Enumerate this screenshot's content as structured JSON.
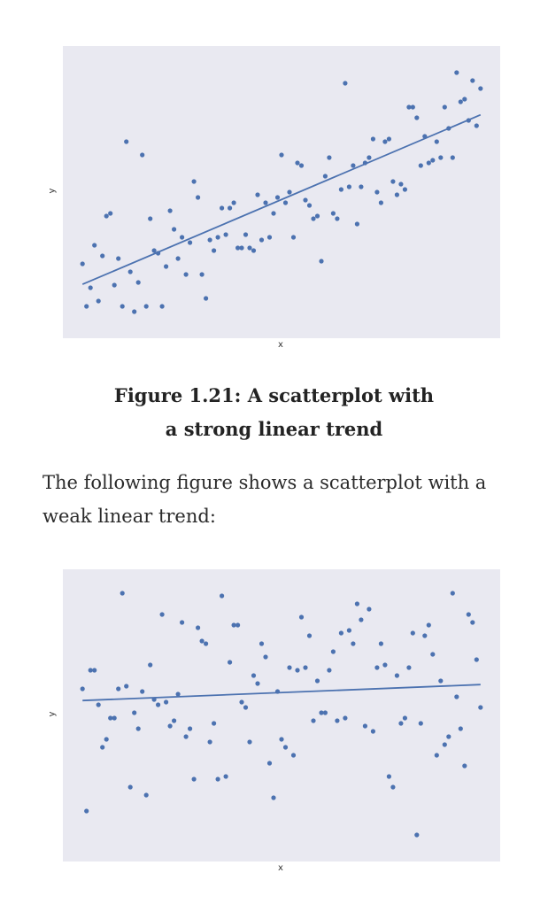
{
  "caption": {
    "line1": "Figure 1.21: A scatterplot with",
    "line2": "a strong linear trend"
  },
  "paragraph": {
    "line1": "The following figure shows a scatterplot with a",
    "line2": "weak linear trend:"
  },
  "colors": {
    "axes_background": "#e9e9f1",
    "point": "#4c72b0",
    "line": "#4c72b0"
  },
  "chart_data": [
    {
      "type": "scatter",
      "title": "",
      "xlabel": "x",
      "ylabel": "y",
      "xlim": [
        0,
        100
      ],
      "ylim": [
        0,
        100
      ],
      "grid": false,
      "trendline": {
        "x": [
          5,
          105
        ],
        "y": [
          15.3,
          79.1
        ]
      },
      "x": [
        5,
        6,
        7,
        8,
        9,
        10,
        11,
        12,
        13,
        14,
        15,
        16,
        17,
        18,
        19,
        20,
        21,
        22,
        23,
        24,
        25,
        26,
        27,
        28,
        29,
        30,
        31,
        32,
        33,
        34,
        35,
        36,
        37,
        38,
        39,
        40,
        41,
        42,
        43,
        44,
        45,
        46,
        47,
        48,
        49,
        50,
        51,
        52,
        53,
        54,
        55,
        56,
        57,
        58,
        59,
        60,
        61,
        62,
        63,
        64,
        65,
        66,
        67,
        68,
        69,
        70,
        71,
        72,
        73,
        74,
        75,
        76,
        77,
        78,
        79,
        80,
        81,
        82,
        83,
        84,
        85,
        86,
        87,
        88,
        89,
        90,
        91,
        92,
        93,
        94,
        95,
        96,
        97,
        98,
        99,
        100,
        101,
        102,
        103,
        104,
        105
      ],
      "y": [
        23,
        7,
        14,
        30,
        9,
        26,
        41,
        42,
        15,
        25,
        7,
        69,
        20,
        5,
        16,
        64,
        7,
        40,
        28,
        27,
        7,
        22,
        43,
        36,
        25,
        33,
        19,
        31,
        54,
        48,
        19,
        10,
        32,
        28,
        33,
        44,
        34,
        44,
        46,
        29,
        29,
        34,
        29,
        28,
        49,
        32,
        46,
        33,
        42,
        48,
        64,
        46,
        50,
        33,
        61,
        60,
        47,
        45,
        40,
        41,
        24,
        56,
        63,
        42,
        40,
        51,
        91,
        52,
        60,
        38,
        52,
        61,
        63,
        70,
        50,
        46,
        69,
        70,
        54,
        49,
        53,
        51,
        82,
        82,
        78,
        60,
        71,
        61,
        62,
        69,
        63,
        82,
        74,
        63,
        95,
        84,
        85,
        77,
        92,
        75,
        89
      ]
    },
    {
      "type": "scatter",
      "title": "",
      "xlabel": "x",
      "ylabel": "y",
      "xlim": [
        0,
        100
      ],
      "ylim": [
        0,
        100
      ],
      "grid": false,
      "trendline": {
        "x": [
          5,
          105
        ],
        "y": [
          55.6,
          61.6
        ]
      },
      "x": [
        5,
        6,
        7,
        8,
        9,
        10,
        11,
        12,
        13,
        14,
        15,
        16,
        17,
        18,
        19,
        20,
        21,
        22,
        23,
        24,
        25,
        26,
        27,
        28,
        29,
        30,
        31,
        32,
        33,
        34,
        35,
        36,
        37,
        38,
        39,
        40,
        41,
        42,
        43,
        44,
        45,
        46,
        47,
        48,
        49,
        50,
        51,
        52,
        53,
        54,
        55,
        56,
        57,
        58,
        59,
        60,
        61,
        62,
        63,
        64,
        65,
        66,
        67,
        68,
        69,
        70,
        71,
        72,
        73,
        74,
        75,
        76,
        77,
        78,
        79,
        80,
        81,
        82,
        83,
        84,
        85,
        86,
        87,
        88,
        89,
        90,
        91,
        92,
        93,
        94,
        95,
        96,
        97,
        98,
        99,
        100,
        101,
        102,
        103,
        104,
        105
      ],
      "y": [
        60,
        14,
        67,
        67,
        54,
        38,
        41,
        49,
        49,
        60,
        96,
        61,
        23,
        51,
        45,
        59,
        20,
        69,
        56,
        54,
        88,
        55,
        46,
        48,
        58,
        85,
        42,
        45,
        26,
        83,
        78,
        77,
        40,
        47,
        26,
        95,
        27,
        70,
        84,
        84,
        55,
        53,
        40,
        65,
        62,
        77,
        72,
        32,
        19,
        59,
        41,
        38,
        68,
        35,
        67,
        87,
        68,
        80,
        48,
        63,
        51,
        51,
        67,
        74,
        48,
        81,
        49,
        82,
        77,
        92,
        86,
        46,
        90,
        44,
        68,
        77,
        69,
        27,
        23,
        65,
        47,
        49,
        68,
        81,
        5,
        47,
        80,
        84,
        73,
        35,
        63,
        39,
        42,
        96,
        57,
        45,
        31,
        88,
        85,
        71,
        53
      ]
    }
  ]
}
